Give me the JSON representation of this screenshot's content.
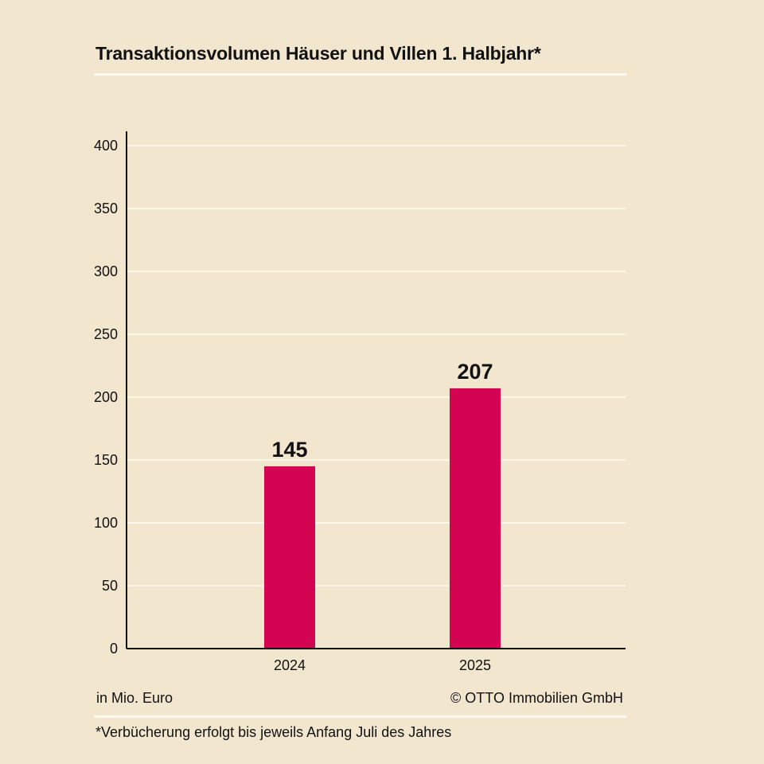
{
  "colors": {
    "background": "#f3e6cf",
    "bar": "#d30452",
    "gridline": "#fffaf0",
    "axis": "#111111"
  },
  "footer": {
    "unit": "in Mio. Euro",
    "copyright": "© OTTO Immobilien GmbH",
    "footnote": "*Verbücherung erfolgt bis jeweils Anfang Juli des Jahres"
  },
  "chart_data": {
    "type": "bar",
    "title": "Transaktionsvolumen Häuser und Villen 1. Halbjahr*",
    "categories": [
      "2024",
      "2025"
    ],
    "values": [
      145,
      207
    ],
    "data_labels": [
      "145",
      "207"
    ],
    "ylim": [
      0,
      400
    ],
    "yticks": [
      0,
      50,
      100,
      150,
      200,
      250,
      300,
      350,
      400
    ],
    "grid": true,
    "legend": "none"
  }
}
